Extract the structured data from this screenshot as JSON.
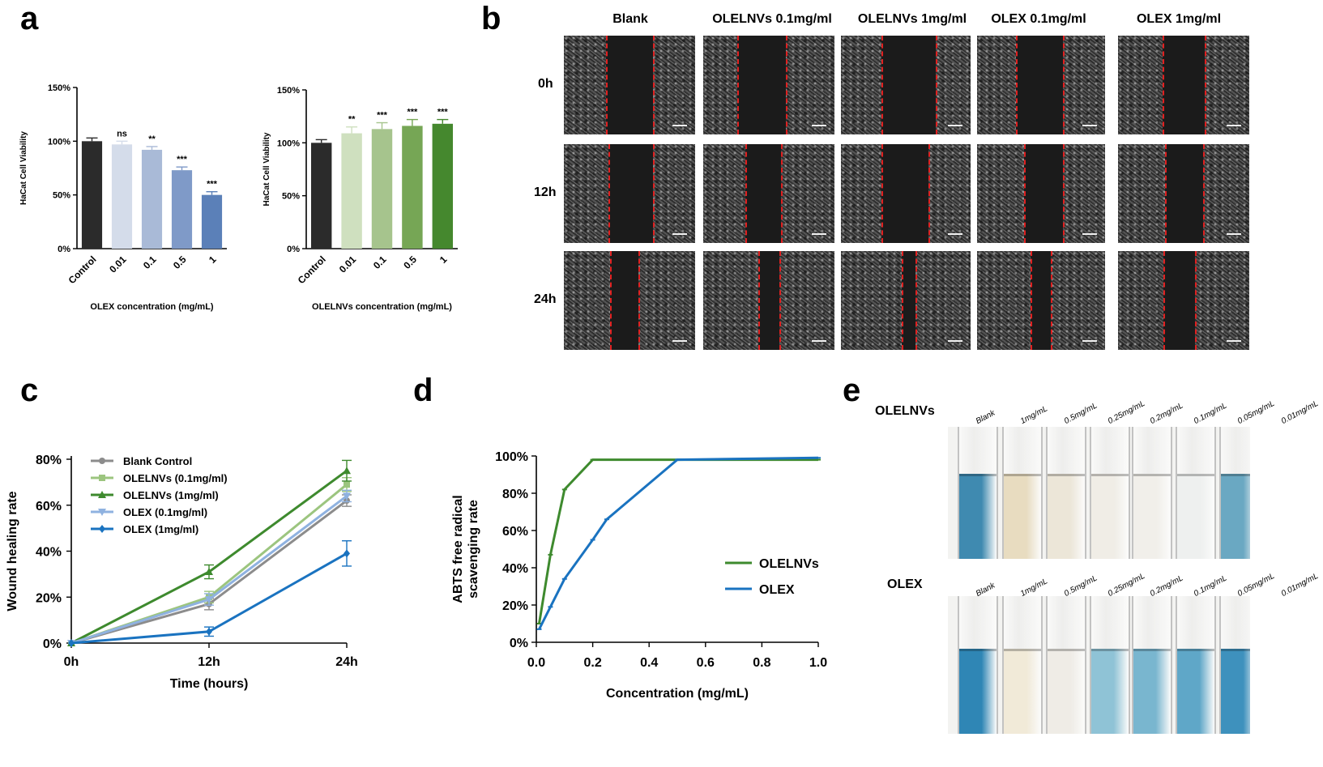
{
  "panels": {
    "a": {
      "letter": "a"
    },
    "b": {
      "letter": "b"
    },
    "c": {
      "letter": "c"
    },
    "d": {
      "letter": "d"
    },
    "e": {
      "letter": "e"
    }
  },
  "chart_data": [
    {
      "id": "a-left",
      "type": "bar",
      "categories": [
        "Control",
        "0.01",
        "0.1",
        "0.5",
        "1"
      ],
      "values": [
        100,
        97,
        92,
        73,
        50
      ],
      "errors": [
        3,
        3,
        3,
        3,
        3
      ],
      "significance": [
        "",
        "ns",
        "**",
        "***",
        "***"
      ],
      "bar_colors": [
        "#2b2b2b",
        "#d4dcea",
        "#a9bad7",
        "#7f9ac8",
        "#5b80b8"
      ],
      "xlabel": "OLEX concentration (mg/mL)",
      "ylabel": "HaCat Cell Viability",
      "yticks": [
        "0%",
        "50%",
        "100%",
        "150%"
      ],
      "ylim": [
        0,
        150
      ]
    },
    {
      "id": "a-right",
      "type": "bar",
      "categories": [
        "Control",
        "0.01",
        "0.1",
        "0.5",
        "1"
      ],
      "values": [
        100,
        109,
        113,
        116,
        118
      ],
      "errors": [
        3,
        6,
        6,
        6,
        4
      ],
      "significance": [
        "",
        "**",
        "***",
        "***",
        "***"
      ],
      "bar_colors": [
        "#2b2b2b",
        "#cfe0bf",
        "#a6c48d",
        "#76a655",
        "#45882e"
      ],
      "xlabel": "OLELNVs concentration (mg/mL)",
      "ylabel": "HaCat Cell Viability",
      "yticks": [
        "0%",
        "50%",
        "100%",
        "150%"
      ],
      "ylim": [
        0,
        150
      ]
    },
    {
      "id": "c",
      "type": "line",
      "x": [
        "0h",
        "12h",
        "24h"
      ],
      "xlabel": "Time (hours)",
      "ylabel": "Wound healing rate",
      "yticks": [
        "0%",
        "20%",
        "40%",
        "60%",
        "80%"
      ],
      "ylim": [
        0,
        80
      ],
      "legend": "top-left",
      "series": [
        {
          "name": "Blank Control",
          "values": [
            0,
            17,
            62
          ],
          "errors": [
            0,
            2.5,
            2.5
          ],
          "color": "#8c8c8c",
          "marker": "circle"
        },
        {
          "name": "OLELNVs (0.1mg/ml)",
          "values": [
            0,
            20,
            69
          ],
          "errors": [
            0,
            2.5,
            3
          ],
          "color": "#9cc57f",
          "marker": "square"
        },
        {
          "name": "OLELNVs  (1mg/ml)",
          "values": [
            0,
            31,
            75
          ],
          "errors": [
            0,
            3,
            4.5
          ],
          "color": "#3e8a2e",
          "marker": "triangle"
        },
        {
          "name": "OLEX (0.1mg/ml)",
          "values": [
            0,
            19,
            64
          ],
          "errors": [
            0,
            2.5,
            2.5
          ],
          "color": "#8fb2e0",
          "marker": "triangle-down"
        },
        {
          "name": "OLEX (1mg/ml)",
          "values": [
            0,
            5,
            39
          ],
          "errors": [
            0,
            2,
            5.5
          ],
          "color": "#1a73c0",
          "marker": "diamond"
        }
      ]
    },
    {
      "id": "d",
      "type": "line",
      "xlabel": "Concentration (mg/mL)",
      "ylabel": "ABTS free radical\nscavenging rate",
      "xticks": [
        "0.0",
        "0.2",
        "0.4",
        "0.6",
        "0.8",
        "1.0"
      ],
      "xlim": [
        0,
        1
      ],
      "yticks": [
        "0%",
        "20%",
        "40%",
        "60%",
        "80%",
        "100%"
      ],
      "ylim": [
        0,
        100
      ],
      "legend": "right",
      "series": [
        {
          "name": "OLELNVs",
          "color": "#3e8a2e",
          "x": [
            0.01,
            0.05,
            0.1,
            0.2,
            0.25,
            0.5,
            1.0
          ],
          "y": [
            10,
            47,
            82,
            98,
            98,
            98,
            98
          ]
        },
        {
          "name": "OLEX",
          "color": "#1a73c0",
          "x": [
            0.01,
            0.05,
            0.1,
            0.2,
            0.25,
            0.5,
            1.0
          ],
          "y": [
            7,
            19,
            34,
            55,
            66,
            98,
            99
          ]
        }
      ]
    }
  ],
  "panel_b": {
    "columns": [
      "Blank",
      "OLELNVs 0.1mg/ml",
      "OLELNVs 1mg/ml",
      "OLEX 0.1mg/ml",
      "OLEX 1mg/ml"
    ],
    "rows": [
      "0h",
      "12h",
      "24h"
    ]
  },
  "panel_e": {
    "groups": [
      {
        "name": "OLELNVs",
        "tube_labels": [
          "Blank",
          "1mg/mL",
          "0.5mg/mL",
          "0.25mg/mL",
          "0.2mg/mL",
          "0.1mg/mL",
          "0.05mg/mL",
          "0.01mg/mL"
        ],
        "liquid_colors": [
          "#3f8ab0",
          "#e8dcc0",
          "#ece6d8",
          "#f0ede6",
          "#f1efea",
          "#eef0ef",
          "#6aa8c2",
          "#3d86a8"
        ]
      },
      {
        "name": "OLEX",
        "tube_labels": [
          "Blank",
          "1mg/mL",
          "0.5mg/mL",
          "0.25mg/mL",
          "0.2mg/mL",
          "0.1mg/mL",
          "0.05mg/mL",
          "0.01mg/mL"
        ],
        "liquid_colors": [
          "#2f86b5",
          "#f1ead8",
          "#efece6",
          "#8fc3d6",
          "#79b6cf",
          "#5fa7c8",
          "#3e91bd",
          "#2f82b0"
        ]
      }
    ]
  }
}
